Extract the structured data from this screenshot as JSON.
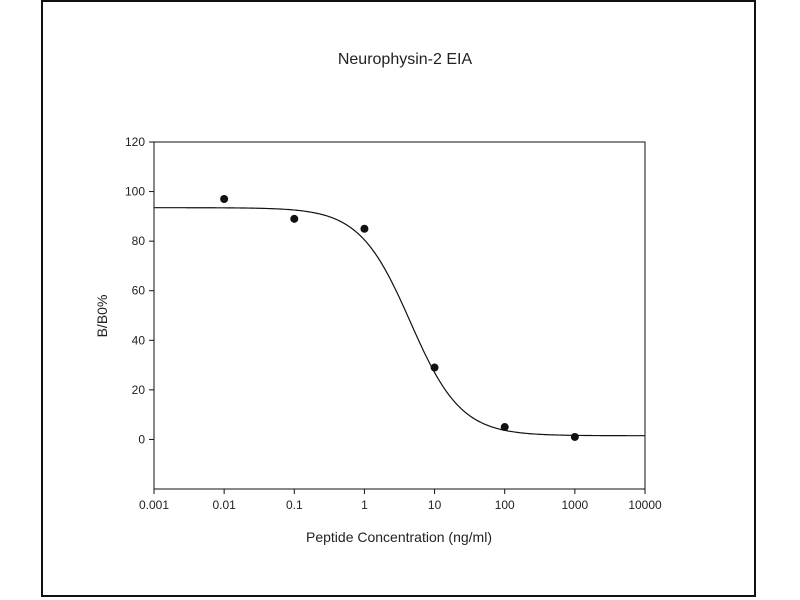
{
  "chart_data": {
    "type": "scatter",
    "title": "Neurophysin-2  EIA",
    "xlabel": "Peptide Concentration (ng/ml)",
    "ylabel": "B/B0%",
    "x_scale": "log",
    "xlim": [
      0.001,
      10000
    ],
    "ylim": [
      -20,
      120
    ],
    "x_ticks": [
      "0.001",
      "0.01",
      "0.1",
      "1",
      "10",
      "100",
      "1000",
      "10000"
    ],
    "x_tick_values": [
      0.001,
      0.01,
      0.1,
      1,
      10,
      100,
      1000,
      10000
    ],
    "y_ticks": [
      "0",
      "20",
      "40",
      "60",
      "80",
      "100",
      "120"
    ],
    "y_tick_values": [
      0,
      20,
      40,
      60,
      80,
      100,
      120
    ],
    "grid": false,
    "legend": "none",
    "series": [
      {
        "x": [
          0.01,
          0.1,
          1,
          10,
          100,
          1000
        ],
        "y": [
          97,
          89,
          85,
          29,
          5,
          1
        ]
      }
    ],
    "fit_curve": {
      "model": "4PL",
      "top": 93.5,
      "bottom": 1.5,
      "ec50": 4.5,
      "hill": 1.2
    },
    "colors": {
      "ink": "#111111",
      "text": "#222222",
      "background": "#ffffff"
    }
  }
}
